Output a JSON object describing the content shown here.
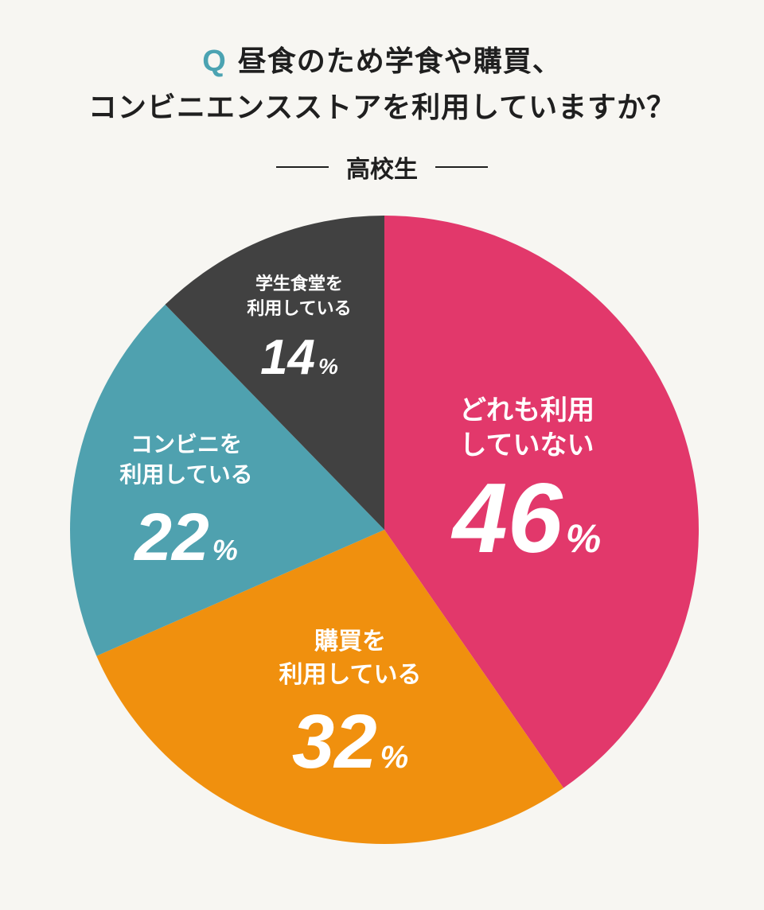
{
  "chart_data": {
    "type": "pie",
    "title_prefix": "Q",
    "title_lines": [
      "昼食のため学食や購買、",
      "コンビニエンスストアを利用していますか？"
    ],
    "subtitle": "高校生",
    "unit": "%",
    "slices": [
      {
        "name": "どれも利用していない",
        "label_lines": [
          "どれも利用",
          "していない"
        ],
        "value": 46,
        "color": "#e2386b"
      },
      {
        "name": "購買を利用している",
        "label_lines": [
          "購買を",
          "利用している"
        ],
        "value": 32,
        "color": "#f0900e"
      },
      {
        "name": "コンビニを利用している",
        "label_lines": [
          "コンビニを",
          "利用している"
        ],
        "value": 22,
        "color": "#4fa1af"
      },
      {
        "name": "学生食堂を利用している",
        "label_lines": [
          "学生食堂を",
          "利用している"
        ],
        "value": 14,
        "color": "#414141"
      }
    ]
  }
}
